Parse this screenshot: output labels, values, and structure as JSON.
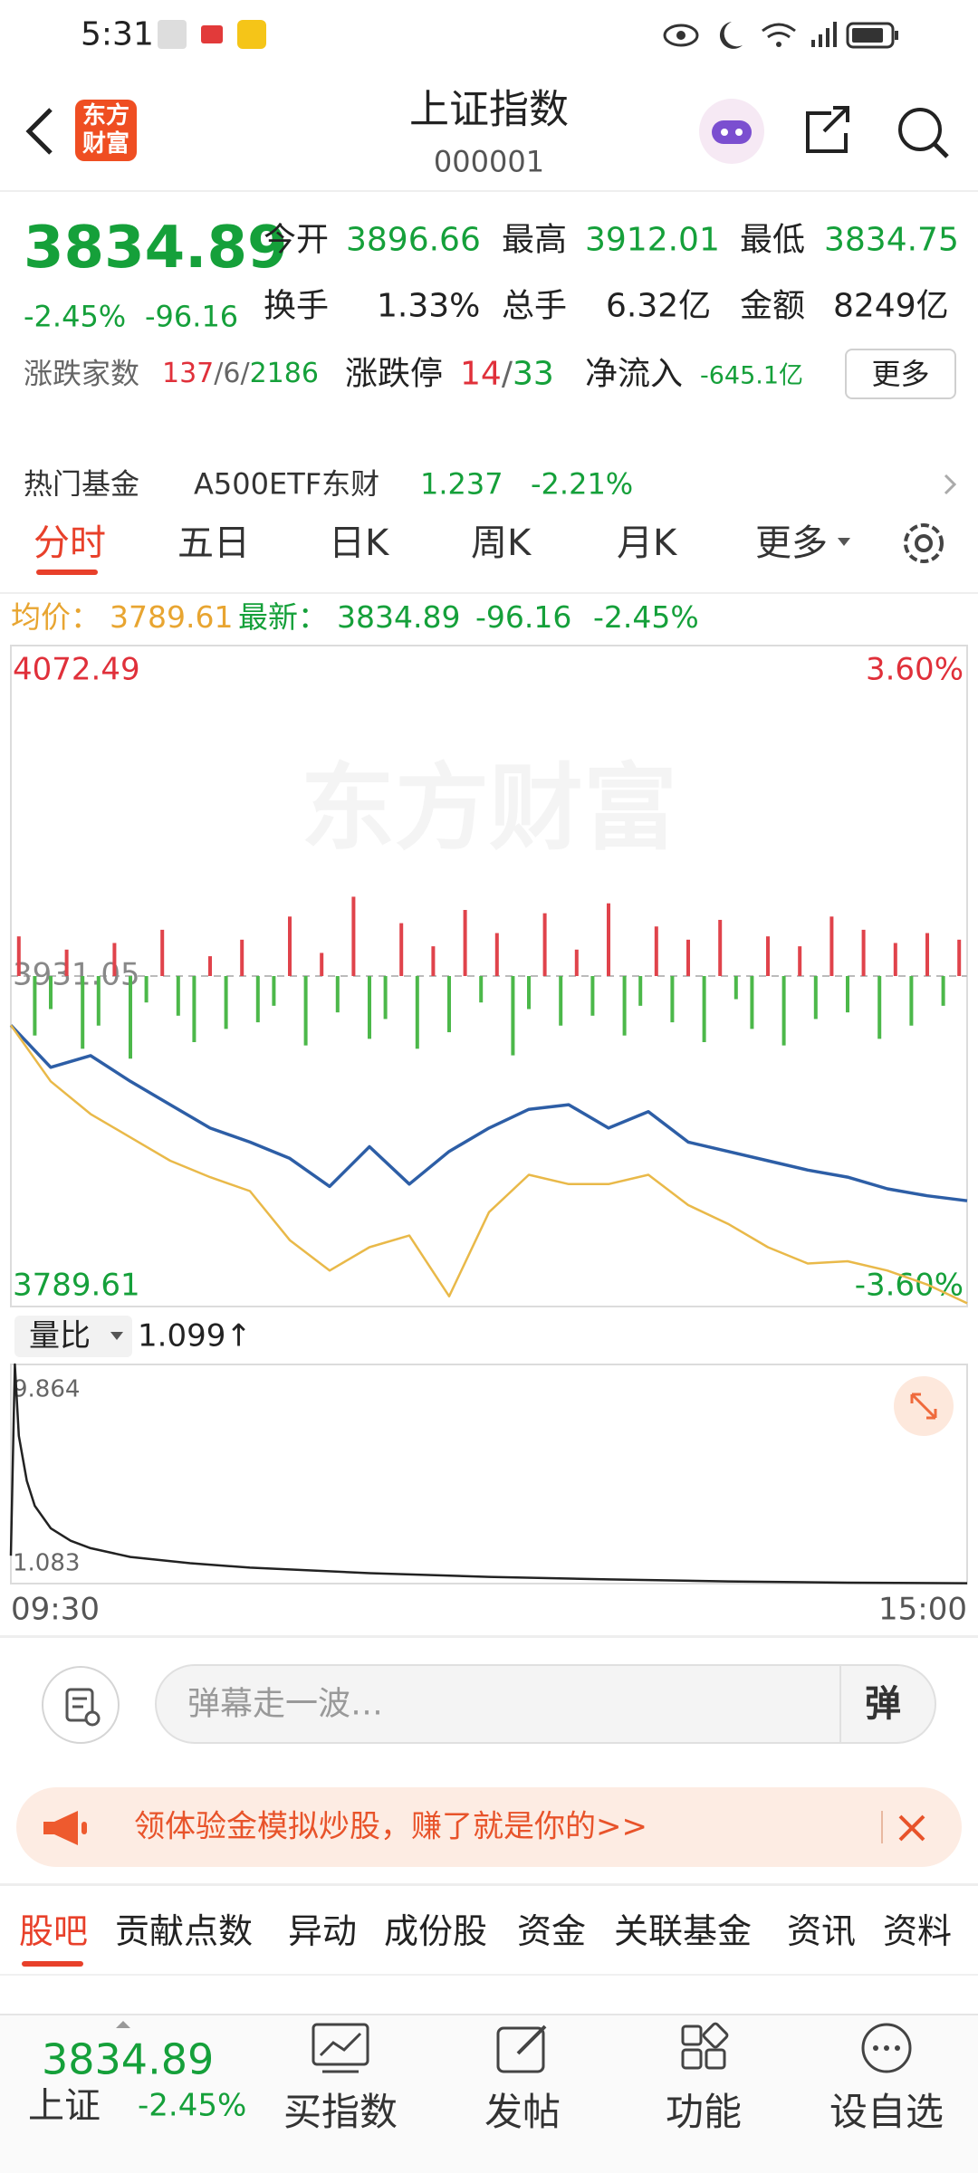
{
  "status": {
    "time": "5:31"
  },
  "header": {
    "logo": "东方财富",
    "title": "上证指数",
    "code": "000001"
  },
  "quote": {
    "price": "3834.89",
    "change_pct": "-2.45%",
    "change": "-96.16",
    "stats": [
      {
        "label": "今开",
        "value": "3896.66"
      },
      {
        "label": "最高",
        "value": "3912.01"
      },
      {
        "label": "最低",
        "value": "3834.75"
      },
      {
        "label": "换手",
        "value": "1.33%"
      },
      {
        "label": "总手",
        "value": "6.32亿"
      },
      {
        "label": "金额",
        "value": "8249亿"
      }
    ],
    "breadth": {
      "label": "涨跌家数",
      "parts": [
        "137",
        "/",
        "6",
        "/",
        "2186"
      ]
    },
    "limit": {
      "label": "涨跌停",
      "parts": [
        "14",
        "/",
        "33"
      ]
    },
    "netflow": {
      "label": "净流入",
      "value": "-645.1亿"
    },
    "more": "更多"
  },
  "hot_fund": {
    "label": "热门基金",
    "name": "A500ETF东财",
    "price": "1.237",
    "change": "-2.21%"
  },
  "tabs": [
    "分时",
    "五日",
    "日K",
    "周K",
    "月K",
    "更多"
  ],
  "info": {
    "avg_label": "均价：",
    "avg": "3789.61",
    "last_label": "最新：",
    "last": "3834.89",
    "change": "-96.16",
    "change_pct": "-2.45%"
  },
  "watermark": "东方财富",
  "chart_data": [
    {
      "type": "line",
      "xlim": [
        0,
        240
      ],
      "ylim": [
        3789.61,
        4072.49
      ],
      "yticks": [
        4072.49,
        3931.05,
        3789.61
      ],
      "y2lim": [
        -3.6,
        3.6
      ],
      "y2ticks": [
        {
          "value": 3.6,
          "label": "3.60%"
        },
        {
          "value": -3.6,
          "label": "-3.60%"
        }
      ],
      "grid": true,
      "x": [
        0,
        10,
        20,
        30,
        40,
        50,
        60,
        70,
        80,
        90,
        100,
        110,
        120,
        130,
        140,
        150,
        160,
        170,
        180,
        190,
        200,
        210,
        220,
        230,
        240
      ],
      "series": [
        {
          "color": "#2d5ea6",
          "values": [
            3910,
            3892,
            3897,
            3886,
            3876,
            3866,
            3860,
            3853,
            3841,
            3858,
            3842,
            3856,
            3866,
            3874,
            3876,
            3866,
            3873,
            3860,
            3856,
            3852,
            3848,
            3845,
            3840,
            3837,
            3834.89
          ]
        },
        {
          "color": "#e9b949",
          "values": [
            3910,
            3886,
            3872,
            3862,
            3852,
            3845,
            3839,
            3818,
            3805,
            3815,
            3820,
            3794,
            3830,
            3846,
            3842,
            3842,
            3846,
            3833,
            3825,
            3815,
            3808,
            3809,
            3805,
            3799,
            3791
          ]
        }
      ]
    },
    {
      "type": "bar",
      "xlim": [
        0,
        240
      ],
      "ylim": [
        -100,
        100
      ],
      "up_color": "#e0434b",
      "down_color": "#4cb84a",
      "x": [
        2,
        6,
        10,
        14,
        18,
        22,
        26,
        30,
        34,
        38,
        42,
        46,
        50,
        54,
        58,
        62,
        66,
        70,
        74,
        78,
        82,
        86,
        90,
        94,
        98,
        102,
        106,
        110,
        114,
        118,
        122,
        126,
        130,
        134,
        138,
        142,
        146,
        150,
        154,
        158,
        162,
        166,
        170,
        174,
        178,
        182,
        186,
        190,
        194,
        198,
        202,
        206,
        210,
        214,
        218,
        222,
        226,
        230,
        234,
        238
      ],
      "values": [
        12,
        -18,
        -10,
        8,
        -22,
        -15,
        10,
        -25,
        -8,
        14,
        -12,
        -20,
        6,
        -16,
        11,
        -14,
        -9,
        18,
        -21,
        7,
        -11,
        24,
        -19,
        -13,
        16,
        -22,
        9,
        -17,
        20,
        -8,
        13,
        -24,
        -10,
        19,
        -15,
        8,
        -12,
        22,
        -18,
        -9,
        15,
        -14,
        11,
        -20,
        17,
        -7,
        -16,
        12,
        -21,
        9,
        -13,
        18,
        -11,
        14,
        -19,
        10,
        -15,
        13,
        -9,
        11
      ]
    },
    {
      "type": "line",
      "indicator": {
        "label": "量比",
        "value": "1.099↑"
      },
      "xlim": [
        0,
        240
      ],
      "ylim": [
        1.083,
        9.864
      ],
      "yticks": [
        9.864,
        1.083
      ],
      "grid": false,
      "xticks": [
        {
          "value": 0,
          "label": "09:30"
        },
        {
          "value": 240,
          "label": "15:00"
        }
      ],
      "x": [
        0,
        1,
        2,
        4,
        6,
        10,
        15,
        20,
        30,
        45,
        60,
        90,
        120,
        150,
        180,
        210,
        240
      ],
      "series": [
        {
          "color": "#222222",
          "values": [
            2.2,
            9.864,
            7.0,
            5.2,
            4.2,
            3.3,
            2.8,
            2.5,
            2.15,
            1.9,
            1.72,
            1.5,
            1.35,
            1.25,
            1.17,
            1.12,
            1.099
          ]
        }
      ]
    }
  ],
  "comment_bar": {
    "placeholder": "弹幕走一波…",
    "button": "弹"
  },
  "banner": {
    "text": "领体验金模拟炒股，赚了就是你的>>"
  },
  "section_tabs": [
    "股吧",
    "贡献点数",
    "异动",
    "成份股",
    "资金",
    "关联基金",
    "资讯",
    "资料"
  ],
  "bottom_bar": {
    "price": "3834.89",
    "name": "上证",
    "change_pct": "-2.45%",
    "items": [
      "买指数",
      "发帖",
      "功能",
      "设自选"
    ]
  }
}
